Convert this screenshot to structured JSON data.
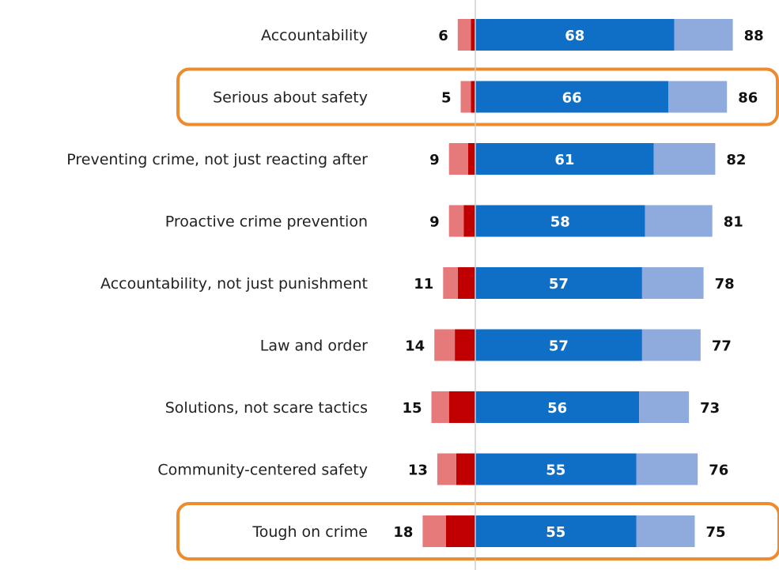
{
  "chart_data": {
    "type": "bar",
    "orientation": "horizontal",
    "stacked": "diverging",
    "categories": [
      "Accountability",
      "Serious about safety",
      "Preventing crime, not just reacting after",
      "Proactive crime prevention",
      "Accountability, not just punishment",
      "Law and order",
      "Solutions, not scare tactics",
      "Community-centered safety",
      "Tough on crime"
    ],
    "series": [
      {
        "values": [
          68,
          66,
          61,
          58,
          57,
          57,
          56,
          55,
          55
        ]
      },
      {
        "values": [
          20,
          20,
          21,
          23,
          21,
          20,
          17,
          21,
          20
        ]
      },
      {
        "values": [
          -1.5,
          -1.5,
          -2.5,
          -4,
          -6,
          -7,
          -9,
          -6.5,
          -10
        ]
      },
      {
        "values": [
          -4.5,
          -3.5,
          -6.5,
          -5,
          -5,
          -7,
          -6,
          -6.5,
          -8
        ]
      }
    ],
    "positive_total_labels": [
      88,
      86,
      82,
      81,
      78,
      77,
      73,
      76,
      75
    ],
    "negative_total_labels": [
      6,
      5,
      9,
      9,
      11,
      14,
      15,
      13,
      18
    ],
    "inbar_labels": [
      68,
      66,
      61,
      58,
      57,
      57,
      56,
      55,
      55
    ],
    "highlighted_categories": [
      "Serious about safety",
      "Tough on crime"
    ],
    "colors": {
      "strong_positive": "#0f6fc6",
      "weak_positive": "#8faadc",
      "strong_negative": "#c00000",
      "weak_negative": "#e6797a",
      "highlight": "#ed8b2f",
      "axis_line": "#cfcfcf"
    },
    "title": "",
    "xlabel": "",
    "ylabel": "",
    "grid": false,
    "legend": "none"
  }
}
